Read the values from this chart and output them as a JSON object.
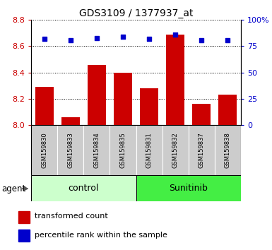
{
  "title": "GDS3109 / 1377937_at",
  "samples": [
    "GSM159830",
    "GSM159833",
    "GSM159834",
    "GSM159835",
    "GSM159831",
    "GSM159832",
    "GSM159837",
    "GSM159838"
  ],
  "bar_values": [
    8.29,
    8.06,
    8.46,
    8.4,
    8.28,
    8.69,
    8.16,
    8.23
  ],
  "percentile_values": [
    82,
    81,
    83,
    84,
    82,
    86,
    81,
    81
  ],
  "ylim_left": [
    8.0,
    8.8
  ],
  "ylim_right": [
    0,
    100
  ],
  "yticks_left": [
    8.0,
    8.2,
    8.4,
    8.6,
    8.8
  ],
  "yticks_right": [
    0,
    25,
    50,
    75,
    100
  ],
  "ytick_labels_right": [
    "0",
    "25",
    "50",
    "75",
    "100%"
  ],
  "bar_color": "#cc0000",
  "dot_color": "#0000cc",
  "groups": [
    {
      "label": "control",
      "indices": [
        0,
        1,
        2,
        3
      ],
      "color": "#ccffcc"
    },
    {
      "label": "Sunitinib",
      "indices": [
        4,
        5,
        6,
        7
      ],
      "color": "#44ee44"
    }
  ],
  "agent_label": "agent",
  "sample_bg_color": "#cccccc",
  "bar_width": 0.7,
  "legend_bar_label": "transformed count",
  "legend_dot_label": "percentile rank within the sample"
}
